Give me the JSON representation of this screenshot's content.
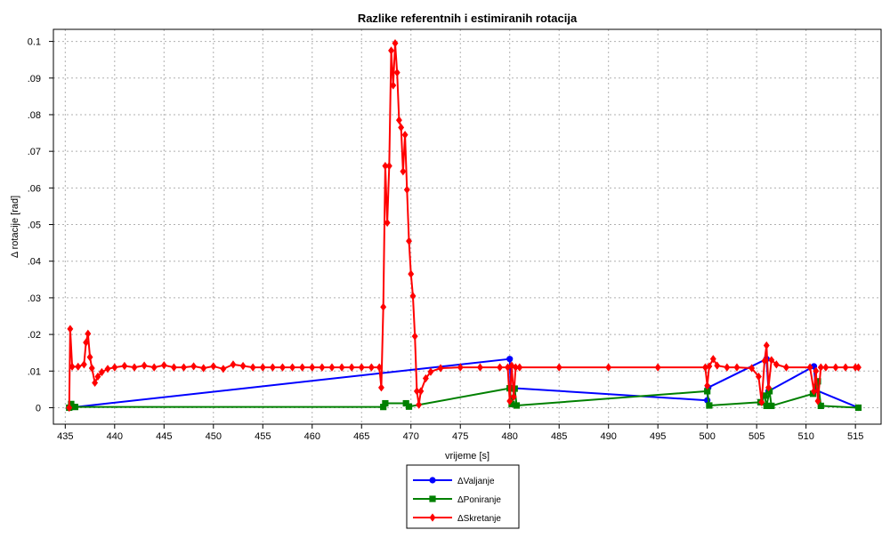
{
  "chart_data": {
    "type": "line",
    "title": "Razlike referentnih i estimiranih rotacija",
    "xlabel": "vrijeme [s]",
    "ylabel": "Δ rotacije [rad]",
    "xlim": [
      433.8,
      517.6
    ],
    "ylim": [
      -0.0045,
      0.1033
    ],
    "xticks": [
      435,
      440,
      445,
      450,
      455,
      460,
      465,
      470,
      475,
      480,
      485,
      490,
      495,
      500,
      505,
      510,
      515
    ],
    "xtick_labels": [
      "435",
      "440",
      "445",
      "450",
      "455",
      "460",
      "465",
      "470",
      "475",
      "480",
      "485",
      "490",
      "495",
      "500",
      "505",
      "510",
      "515"
    ],
    "yticks": [
      0,
      0.01,
      0.02,
      0.03,
      0.04,
      0.05,
      0.06,
      0.07,
      0.08,
      0.09,
      0.1
    ],
    "ytick_labels": [
      "0",
      ".01",
      ".02",
      ".03",
      ".04",
      ".05",
      ".06",
      ".07",
      ".08",
      ".09",
      "0.1"
    ],
    "grid": true,
    "legend_position": "bottom-center",
    "series": [
      {
        "name": "ΔValjanje",
        "color": "#0000ff",
        "marker": "circle",
        "points": [
          [
            435.4,
            0
          ],
          [
            480,
            0.0133
          ],
          [
            480.1,
            0.0054
          ],
          [
            500,
            0.002
          ],
          [
            500.1,
            0.0055
          ],
          [
            506,
            0.0133
          ],
          [
            506.2,
            0.0045
          ],
          [
            510.8,
            0.0113
          ],
          [
            511,
            0.0048
          ],
          [
            515.3,
            0
          ]
        ]
      },
      {
        "name": "ΔPoniranje",
        "color": "#008000",
        "marker": "square",
        "points": [
          [
            435.4,
            0
          ],
          [
            435.6,
            0.001
          ],
          [
            436,
            0.0002
          ],
          [
            467.2,
            0.0002
          ],
          [
            467.4,
            0.0012
          ],
          [
            469.5,
            0.0012
          ],
          [
            469.8,
            0.0003
          ],
          [
            480,
            0.0053
          ],
          [
            480.2,
            0.001
          ],
          [
            480.5,
            0.0052
          ],
          [
            480.7,
            0.0006
          ],
          [
            500,
            0.0045
          ],
          [
            500.2,
            0.0006
          ],
          [
            505.4,
            0.0015
          ],
          [
            505.8,
            0.0033
          ],
          [
            506,
            0.0005
          ],
          [
            506.3,
            0.0045
          ],
          [
            506.5,
            0.0005
          ],
          [
            510.7,
            0.0038
          ],
          [
            511.2,
            0.0072
          ],
          [
            511.5,
            0.0005
          ],
          [
            515.3,
            0
          ]
        ]
      },
      {
        "name": "ΔSkretanje",
        "color": "#ff0000",
        "marker": "diamond",
        "points": [
          [
            435.4,
            0
          ],
          [
            435.5,
            0.0215
          ],
          [
            435.7,
            0.0112
          ],
          [
            436.3,
            0.0112
          ],
          [
            436.9,
            0.0118
          ],
          [
            437.1,
            0.0178
          ],
          [
            437.3,
            0.0202
          ],
          [
            437.5,
            0.0138
          ],
          [
            437.7,
            0.0108
          ],
          [
            438,
            0.0068
          ],
          [
            438.3,
            0.0085
          ],
          [
            438.7,
            0.0097
          ],
          [
            439.3,
            0.0106
          ],
          [
            440,
            0.011
          ],
          [
            441,
            0.0114
          ],
          [
            442,
            0.011
          ],
          [
            443,
            0.0115
          ],
          [
            444,
            0.011
          ],
          [
            445,
            0.0116
          ],
          [
            446,
            0.011
          ],
          [
            447,
            0.011
          ],
          [
            448,
            0.0113
          ],
          [
            449,
            0.0108
          ],
          [
            450,
            0.0113
          ],
          [
            451,
            0.0106
          ],
          [
            452,
            0.0118
          ],
          [
            453,
            0.0114
          ],
          [
            454,
            0.011
          ],
          [
            455,
            0.011
          ],
          [
            456,
            0.011
          ],
          [
            457,
            0.011
          ],
          [
            458,
            0.011
          ],
          [
            459,
            0.011
          ],
          [
            460,
            0.011
          ],
          [
            461,
            0.011
          ],
          [
            462,
            0.011
          ],
          [
            463,
            0.011
          ],
          [
            464,
            0.011
          ],
          [
            465,
            0.011
          ],
          [
            466,
            0.011
          ],
          [
            466.8,
            0.011
          ],
          [
            467,
            0.0055
          ],
          [
            467.2,
            0.0275
          ],
          [
            467.4,
            0.066
          ],
          [
            467.6,
            0.0505
          ],
          [
            467.8,
            0.066
          ],
          [
            468,
            0.0975
          ],
          [
            468.2,
            0.088
          ],
          [
            468.4,
            0.0995
          ],
          [
            468.6,
            0.0915
          ],
          [
            468.8,
            0.0785
          ],
          [
            469,
            0.0765
          ],
          [
            469.2,
            0.0645
          ],
          [
            469.4,
            0.0745
          ],
          [
            469.6,
            0.0595
          ],
          [
            469.8,
            0.0455
          ],
          [
            470,
            0.0365
          ],
          [
            470.2,
            0.0305
          ],
          [
            470.4,
            0.0195
          ],
          [
            470.6,
            0.0045
          ],
          [
            470.8,
            0.0008
          ],
          [
            471,
            0.0045
          ],
          [
            471.5,
            0.008
          ],
          [
            472,
            0.0098
          ],
          [
            473,
            0.0108
          ],
          [
            475,
            0.011
          ],
          [
            477,
            0.011
          ],
          [
            479,
            0.011
          ],
          [
            479.8,
            0.011
          ],
          [
            480,
            0.0018
          ],
          [
            480.2,
            0.0115
          ],
          [
            480.4,
            0.003
          ],
          [
            480.6,
            0.011
          ],
          [
            481,
            0.011
          ],
          [
            485,
            0.011
          ],
          [
            490,
            0.011
          ],
          [
            495,
            0.011
          ],
          [
            499.8,
            0.011
          ],
          [
            500,
            0.006
          ],
          [
            500.2,
            0.0113
          ],
          [
            500.6,
            0.0133
          ],
          [
            501,
            0.0115
          ],
          [
            502,
            0.011
          ],
          [
            503,
            0.011
          ],
          [
            504.5,
            0.0108
          ],
          [
            505.2,
            0.0085
          ],
          [
            505.5,
            0.0015
          ],
          [
            505.8,
            0.0128
          ],
          [
            506,
            0.017
          ],
          [
            506.2,
            0.0055
          ],
          [
            506.5,
            0.013
          ],
          [
            507,
            0.0118
          ],
          [
            508,
            0.011
          ],
          [
            510.4,
            0.011
          ],
          [
            510.8,
            0.0045
          ],
          [
            511,
            0.01
          ],
          [
            511.2,
            0.0018
          ],
          [
            511.5,
            0.011
          ],
          [
            512,
            0.011
          ],
          [
            513,
            0.011
          ],
          [
            514,
            0.011
          ],
          [
            515,
            0.011
          ],
          [
            515.3,
            0.011
          ]
        ]
      }
    ]
  }
}
